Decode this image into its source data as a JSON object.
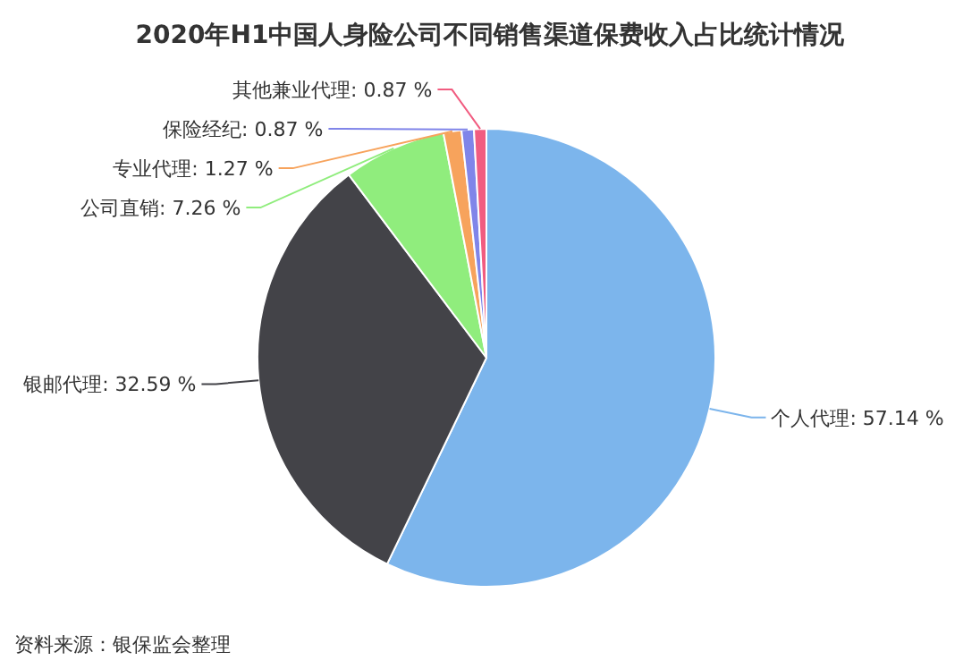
{
  "chart_data": {
    "type": "pie",
    "title": "2020年H1中国人身险公司不同销售渠道保费收入占比统计情况",
    "categories": [
      "个人代理",
      "银邮代理",
      "公司直销",
      "专业代理",
      "保险经纪",
      "其他兼业代理"
    ],
    "values": [
      57.14,
      32.59,
      7.26,
      1.27,
      0.87,
      0.87
    ],
    "value_labels": [
      "57.14 %",
      "32.59 %",
      "7.26 %",
      "1.27 %",
      "0.87 %",
      "0.87 %"
    ],
    "colors": [
      "#7cb5ec",
      "#434348",
      "#90ed7d",
      "#f7a35c",
      "#8085e9",
      "#f15c80"
    ],
    "annotations": [
      "资料来源：银保监会整理"
    ]
  }
}
